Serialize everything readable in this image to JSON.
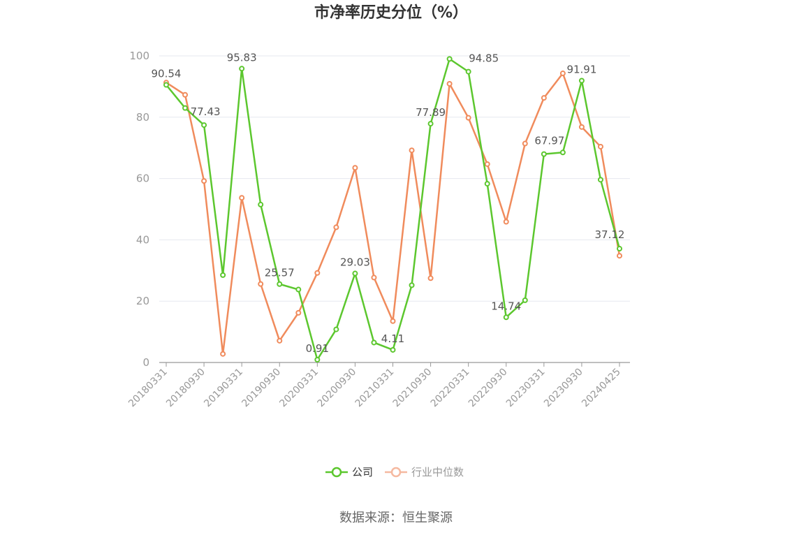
{
  "chart_data": {
    "type": "line",
    "title": "市净率历史分位（%）",
    "ylim": [
      0,
      100
    ],
    "yticks": [
      0,
      20,
      40,
      60,
      80,
      100
    ],
    "grid": true,
    "legend_position": "bottom-center",
    "x": [
      "20180331",
      "20180630",
      "20180930",
      "20181231",
      "20190331",
      "20190630",
      "20190930",
      "20191231",
      "20200331",
      "20200630",
      "20200930",
      "20201231",
      "20210331",
      "20210630",
      "20210930",
      "20211231",
      "20220331",
      "20220630",
      "20220930",
      "20221231",
      "20230331",
      "20230630",
      "20230930",
      "20231231",
      "20240425"
    ],
    "x_tick_labels": [
      "20180331",
      "20180930",
      "20190331",
      "20190930",
      "20200331",
      "20200930",
      "20210331",
      "20210930",
      "20220331",
      "20220930",
      "20230331",
      "20230930",
      "20240425"
    ],
    "series": [
      {
        "name": "公司",
        "color": "#5cc72e",
        "values": [
          90.54,
          83,
          77.43,
          28.5,
          95.83,
          51.5,
          25.57,
          23.8,
          0.91,
          10.8,
          29.03,
          6.5,
          4.11,
          25.2,
          77.89,
          99,
          94.85,
          58.3,
          14.74,
          20.3,
          67.97,
          68.5,
          91.91,
          59.6,
          37.12
        ],
        "labels": [
          "90.54",
          "",
          "77.43",
          "",
          "95.83",
          "",
          "25.57",
          "",
          "0.91",
          "",
          "29.03",
          "",
          "4.11",
          "",
          "77.89",
          "",
          "94.85",
          "",
          "14.74",
          "",
          "67.97",
          "",
          "91.91",
          "",
          "37.12"
        ]
      },
      {
        "name": "行业中位数",
        "color": "#f08b5c",
        "values": [
          91.3,
          87.3,
          59.2,
          2.8,
          53.7,
          25.6,
          7.1,
          16.2,
          29.2,
          44.1,
          63.5,
          27.7,
          13.5,
          69.2,
          27.5,
          90.9,
          79.8,
          64.7,
          45.9,
          71.4,
          86.3,
          94.3,
          76.8,
          70.4,
          34.8
        ]
      }
    ],
    "legend_marker_colors": [
      "#5cc72e",
      "#f5b9a0"
    ],
    "legend_text_colors": [
      "#333333",
      "#999999"
    ]
  },
  "source_text": "数据来源：恒生聚源"
}
